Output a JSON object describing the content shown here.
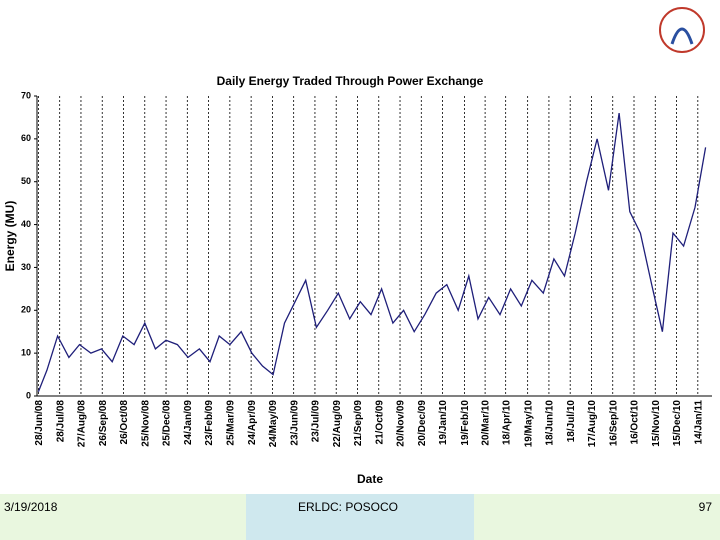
{
  "chart_data": {
    "type": "line",
    "title": "Daily Energy Traded Through Power Exchange",
    "x_label": "Date",
    "y_label": "Energy (MU)",
    "xlim": [
      "2008-06-26",
      "2011-02-03"
    ],
    "ylim": [
      0,
      70
    ],
    "yticks": [
      0,
      10,
      20,
      30,
      40,
      50,
      60,
      70
    ],
    "xticks": [
      {
        "value": "2008-06-28",
        "label": "28/Jun/08"
      },
      {
        "value": "2008-07-28",
        "label": "28/Jul/08"
      },
      {
        "value": "2008-08-27",
        "label": "27/Aug/08"
      },
      {
        "value": "2008-09-26",
        "label": "26/Sep/08"
      },
      {
        "value": "2008-10-26",
        "label": "26/Oct/08"
      },
      {
        "value": "2008-11-25",
        "label": "25/Nov/08"
      },
      {
        "value": "2008-12-25",
        "label": "25/Dec/08"
      },
      {
        "value": "2009-01-24",
        "label": "24/Jan/09"
      },
      {
        "value": "2009-02-23",
        "label": "23/Feb/09"
      },
      {
        "value": "2009-03-25",
        "label": "25/Mar/09"
      },
      {
        "value": "2009-04-24",
        "label": "24/Apr/09"
      },
      {
        "value": "2009-05-24",
        "label": "24/May/09"
      },
      {
        "value": "2009-06-23",
        "label": "23/Jun/09"
      },
      {
        "value": "2009-07-23",
        "label": "23/Jul/09"
      },
      {
        "value": "2009-08-22",
        "label": "22/Aug/09"
      },
      {
        "value": "2009-09-21",
        "label": "21/Sep/09"
      },
      {
        "value": "2009-10-21",
        "label": "21/Oct/09"
      },
      {
        "value": "2009-11-20",
        "label": "20/Nov/09"
      },
      {
        "value": "2009-12-20",
        "label": "20/Dec/09"
      },
      {
        "value": "2010-01-19",
        "label": "19/Jan/10"
      },
      {
        "value": "2010-02-19",
        "label": "19/Feb/10"
      },
      {
        "value": "2010-03-20",
        "label": "20/Mar/10"
      },
      {
        "value": "2010-04-18",
        "label": "18/Apr/10"
      },
      {
        "value": "2010-05-19",
        "label": "19/May/10"
      },
      {
        "value": "2010-06-18",
        "label": "18/Jun/10"
      },
      {
        "value": "2010-07-18",
        "label": "18/Jul/10"
      },
      {
        "value": "2010-08-17",
        "label": "17/Aug/10"
      },
      {
        "value": "2010-09-16",
        "label": "16/Sep/10"
      },
      {
        "value": "2010-10-16",
        "label": "16/Oct/10"
      },
      {
        "value": "2010-11-15",
        "label": "15/Nov/10"
      },
      {
        "value": "2010-12-15",
        "label": "15/Dec/10"
      },
      {
        "value": "2011-01-14",
        "label": "14/Jan/11"
      }
    ],
    "grid": true,
    "color": "#1f1f7a",
    "x": [
      "2008-06-28",
      "2008-07-10",
      "2008-07-25",
      "2008-08-10",
      "2008-08-25",
      "2008-09-10",
      "2008-09-25",
      "2008-10-10",
      "2008-10-25",
      "2008-11-10",
      "2008-11-25",
      "2008-12-10",
      "2008-12-25",
      "2009-01-10",
      "2009-01-25",
      "2009-02-10",
      "2009-02-25",
      "2009-03-10",
      "2009-03-25",
      "2009-04-10",
      "2009-04-25",
      "2009-05-10",
      "2009-05-25",
      "2009-06-10",
      "2009-06-25",
      "2009-07-10",
      "2009-07-25",
      "2009-08-10",
      "2009-08-25",
      "2009-09-10",
      "2009-09-25",
      "2009-10-10",
      "2009-10-25",
      "2009-11-10",
      "2009-11-25",
      "2009-12-10",
      "2009-12-25",
      "2010-01-10",
      "2010-01-25",
      "2010-02-10",
      "2010-02-25",
      "2010-03-10",
      "2010-03-25",
      "2010-04-10",
      "2010-04-25",
      "2010-05-10",
      "2010-05-25",
      "2010-06-10",
      "2010-06-25",
      "2010-07-10",
      "2010-07-25",
      "2010-08-10",
      "2010-08-25",
      "2010-09-10",
      "2010-09-25",
      "2010-10-10",
      "2010-10-25",
      "2010-11-10",
      "2010-11-25",
      "2010-12-10",
      "2010-12-25",
      "2011-01-10",
      "2011-01-25"
    ],
    "values": [
      1,
      6,
      14,
      9,
      12,
      10,
      11,
      8,
      14,
      12,
      17,
      11,
      13,
      12,
      9,
      11,
      8,
      14,
      12,
      15,
      10,
      7,
      5,
      17,
      22,
      27,
      16,
      20,
      24,
      18,
      22,
      19,
      25,
      17,
      20,
      15,
      19,
      24,
      26,
      20,
      28,
      18,
      23,
      19,
      25,
      21,
      27,
      24,
      32,
      28,
      38,
      50,
      60,
      48,
      66,
      43,
      38,
      26,
      15,
      38,
      35,
      44,
      58
    ]
  },
  "footer": {
    "date": "3/19/2018",
    "org": "ERLDC: POSOCO",
    "page": "97"
  }
}
